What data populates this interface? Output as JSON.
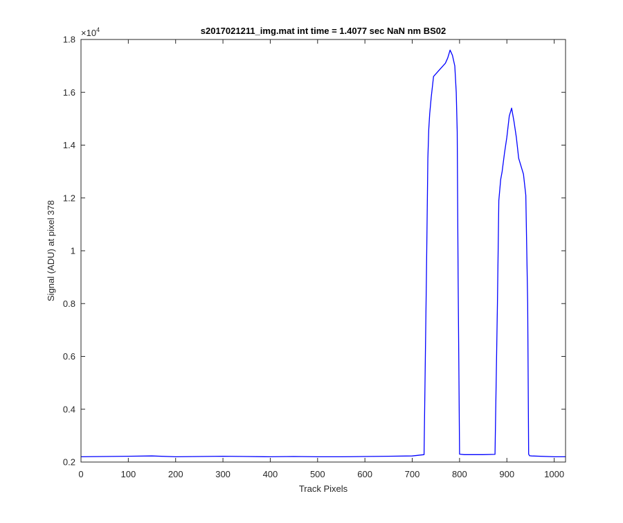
{
  "chart_data": {
    "type": "line",
    "title": "s2017021211_img.mat int time = 1.4077 sec  NaN nm BS02",
    "xlabel": "Track Pixels",
    "ylabel": "Signal (ADU) at pixel 378",
    "y_exponent_base": "×10",
    "y_exponent_power": "4",
    "xlim": [
      0,
      1024
    ],
    "ylim": [
      2000,
      18000
    ],
    "x_ticks": [
      0,
      100,
      200,
      300,
      400,
      500,
      600,
      700,
      800,
      900,
      1000
    ],
    "x_tick_labels": [
      "0",
      "100",
      "200",
      "300",
      "400",
      "500",
      "600",
      "700",
      "800",
      "900",
      "1000"
    ],
    "y_ticks": [
      2000,
      4000,
      6000,
      8000,
      10000,
      12000,
      14000,
      16000,
      18000
    ],
    "y_tick_labels": [
      "0.2",
      "0.4",
      "0.6",
      "0.8",
      "1",
      "1.2",
      "1.4",
      "1.6",
      "1.8"
    ],
    "grid": false,
    "series": [
      {
        "color": "#0000ff",
        "x": [
          0,
          50,
          100,
          150,
          200,
          250,
          300,
          350,
          400,
          450,
          500,
          550,
          600,
          650,
          700,
          725,
          730,
          733,
          735,
          737,
          740,
          745,
          750,
          760,
          770,
          775,
          780,
          785,
          790,
          793,
          795,
          797,
          800,
          810,
          850,
          875,
          880,
          883,
          887,
          890,
          895,
          900,
          905,
          910,
          915,
          920,
          925,
          935,
          940,
          944,
          946,
          948,
          952,
          1000,
          1024
        ],
        "y": [
          2200,
          2210,
          2220,
          2230,
          2200,
          2210,
          2220,
          2210,
          2200,
          2210,
          2200,
          2200,
          2210,
          2220,
          2230,
          2280,
          9000,
          13500,
          14600,
          15200,
          15800,
          16600,
          16700,
          16900,
          17100,
          17300,
          17600,
          17400,
          17000,
          16000,
          14500,
          9000,
          2300,
          2280,
          2280,
          2290,
          8000,
          11900,
          12700,
          13000,
          13700,
          14300,
          15100,
          15400,
          14900,
          14300,
          13500,
          12900,
          12100,
          8000,
          2300,
          2240,
          2230,
          2200,
          2200
        ]
      }
    ]
  }
}
